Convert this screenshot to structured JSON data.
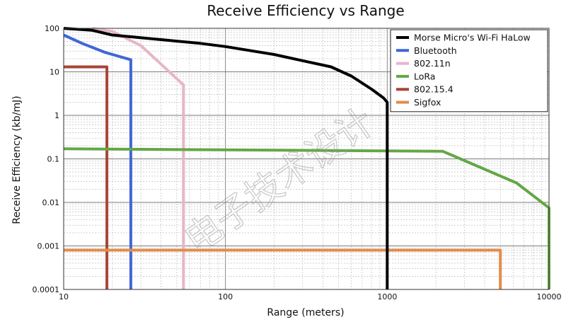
{
  "chart_data": {
    "type": "line",
    "title": "Receive Efficiency vs Range",
    "xlabel": "Range (meters)",
    "ylabel": "Receive Efficiency (kb/mJ)",
    "xscale": "log",
    "yscale": "log",
    "xlim": [
      10,
      10000
    ],
    "ylim": [
      0.0001,
      100
    ],
    "x_ticks": [
      "10",
      "100",
      "1000",
      "10000"
    ],
    "y_ticks": [
      "0.0001",
      "0.001",
      "0.01",
      "0.1",
      "1",
      "10",
      "100"
    ],
    "grid": true,
    "legend_position": "top-right",
    "series": [
      {
        "name": "Morse Micro's Wi-Fi HaLow",
        "color": "#000000",
        "x": [
          10,
          15,
          20,
          40,
          70,
          100,
          200,
          300,
          450,
          600,
          800,
          950,
          1000,
          1000
        ],
        "y": [
          100,
          90,
          70,
          55,
          45,
          38,
          25,
          18,
          13,
          8,
          4,
          2.5,
          2,
          0.0001
        ]
      },
      {
        "name": "Bluetooth",
        "color": "#3f67d6",
        "x": [
          10,
          13,
          18,
          26,
          26
        ],
        "y": [
          70,
          45,
          28,
          19,
          0.0001
        ]
      },
      {
        "name": "802.11n",
        "color": "#e7b5c9",
        "x": [
          15,
          20,
          30,
          40,
          55,
          55
        ],
        "y": [
          100,
          85,
          40,
          15,
          5,
          0.0001
        ]
      },
      {
        "name": "LoRa",
        "color": "#63a747",
        "x": [
          10,
          2200,
          6300,
          10000,
          10000
        ],
        "y": [
          0.17,
          0.15,
          0.028,
          0.0075,
          0.0001
        ]
      },
      {
        "name": "802.15.4",
        "color": "#a94436",
        "x": [
          10,
          18.5,
          18.5
        ],
        "y": [
          13,
          13,
          0.0001
        ]
      },
      {
        "name": "Sigfox",
        "color": "#e08c4c",
        "x": [
          10,
          5000,
          5000
        ],
        "y": [
          0.0008,
          0.0008,
          0.0001
        ]
      }
    ]
  },
  "watermark": {
    "text": "电子技术设计"
  }
}
